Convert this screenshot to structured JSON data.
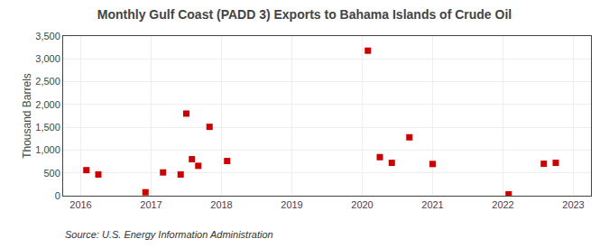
{
  "chart_data": {
    "type": "scatter",
    "title": "Monthly Gulf Coast (PADD 3) Exports to Bahama Islands of Crude Oil",
    "ylabel": "Thousand Barrels",
    "annotations": [
      "Source: U.S. Energy Information Administration"
    ],
    "color": "#cc0000",
    "marker": "square",
    "grid": true,
    "x": [
      2016.08,
      2016.25,
      2016.92,
      2017.17,
      2017.42,
      2017.5,
      2017.58,
      2017.67,
      2017.83,
      2018.08,
      2020.08,
      2020.25,
      2020.42,
      2020.67,
      2021.0,
      2022.08,
      2022.58,
      2022.75
    ],
    "values": [
      560,
      465,
      75,
      510,
      465,
      1800,
      800,
      655,
      1510,
      760,
      3180,
      845,
      720,
      1280,
      695,
      30,
      700,
      720
    ],
    "xlim": [
      2015.75,
      2023.25
    ],
    "xticks": [
      2016,
      2017,
      2018,
      2019,
      2020,
      2021,
      2022,
      2023
    ],
    "ylim": [
      0,
      3500
    ],
    "yticks": [
      0,
      500,
      {
        "value": 1000,
        "label": "1,000"
      },
      {
        "value": 1500,
        "label": "1,500"
      },
      {
        "value": 2000,
        "label": "2,000"
      },
      {
        "value": 2500,
        "label": "2,500"
      },
      {
        "value": 3000,
        "label": "3,000"
      },
      {
        "value": 3500,
        "label": "3,500"
      }
    ]
  }
}
